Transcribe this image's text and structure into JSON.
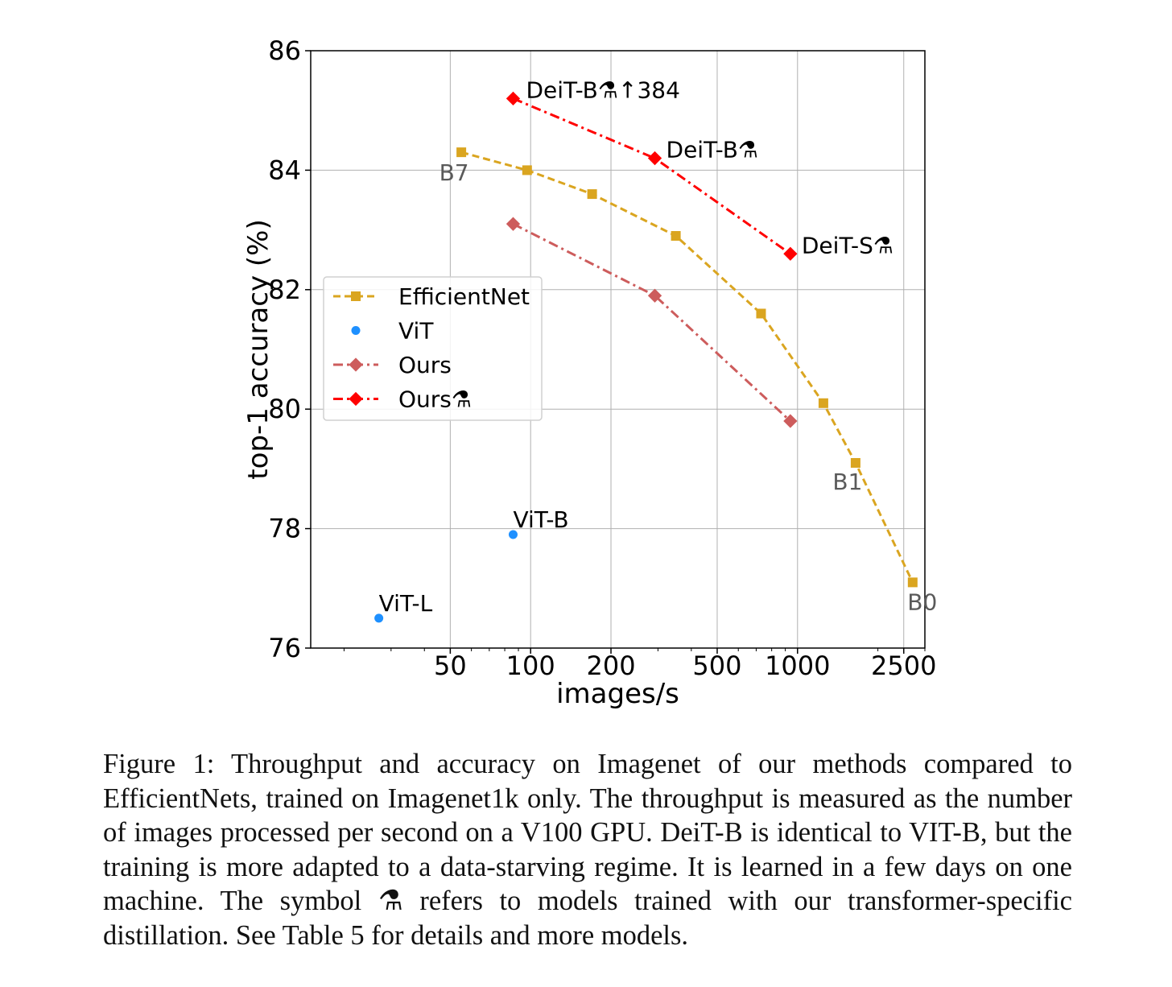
{
  "chart_data": {
    "type": "line",
    "x_scale": "log",
    "xlabel": "images/s",
    "ylabel": "top-1 accuracy (%)",
    "xlim": [
      15,
      3000
    ],
    "ylim": [
      76,
      86
    ],
    "xticks": [
      50,
      100,
      200,
      500,
      1000,
      2500
    ],
    "xtick_labels": [
      "50",
      "100",
      "200",
      "500",
      "1000",
      "2500"
    ],
    "yticks": [
      76,
      78,
      80,
      82,
      84,
      86
    ],
    "ytick_labels": [
      "76",
      "78",
      "80",
      "82",
      "84",
      "86"
    ],
    "grid": true,
    "legend_position": "center-left",
    "series": [
      {
        "name": "EfficientNet",
        "color": "#DAA520",
        "marker": "square",
        "line": "dashed",
        "x": [
          55,
          97,
          170,
          350,
          730,
          1250,
          1650,
          2700
        ],
        "y": [
          84.3,
          84.0,
          83.6,
          82.9,
          81.6,
          80.1,
          79.1,
          77.1
        ]
      },
      {
        "name": "ViT",
        "color": "#1E90FF",
        "marker": "circle",
        "line": "none",
        "x": [
          27,
          86
        ],
        "y": [
          76.5,
          77.9
        ]
      },
      {
        "name": "Ours",
        "color": "#CD5C5C",
        "marker": "diamond",
        "line": "dashdot",
        "x": [
          86,
          292,
          940
        ],
        "y": [
          83.1,
          81.9,
          79.8
        ]
      },
      {
        "name": "Ours⚗",
        "color": "#FF0000",
        "marker": "diamond",
        "line": "dashdot",
        "x": [
          86,
          292,
          940
        ],
        "y": [
          85.2,
          84.2,
          82.6
        ]
      }
    ],
    "annotations": [
      {
        "text": "DeiT-B⚗↑384",
        "x": 86,
        "y": 85.2,
        "style": "black"
      },
      {
        "text": "DeiT-B⚗",
        "x": 292,
        "y": 84.2,
        "style": "black"
      },
      {
        "text": "DeiT-S⚗",
        "x": 940,
        "y": 82.6,
        "style": "black"
      },
      {
        "text": "ViT-B",
        "x": 86,
        "y": 77.9,
        "style": "black"
      },
      {
        "text": "ViT-L",
        "x": 27,
        "y": 76.5,
        "style": "black"
      },
      {
        "text": "B7",
        "x": 55,
        "y": 84.3,
        "style": "gray"
      },
      {
        "text": "B1",
        "x": 1650,
        "y": 79.1,
        "style": "gray"
      },
      {
        "text": "B0",
        "x": 2700,
        "y": 77.1,
        "style": "gray"
      }
    ]
  },
  "caption": {
    "text": "Figure 1: Throughput and accuracy on Imagenet of our methods compared to EfficientNets, trained on Imagenet1k only. The throughput is measured as the number of images processed per second on a V100 GPU. DeiT-B is identical to VIT-B, but the training is more adapted to a data-starving regime. It is learned in a few days on one machine. The symbol ⚗ refers to models trained with our transformer-specific distillation. See Table 5 for details and more models."
  }
}
